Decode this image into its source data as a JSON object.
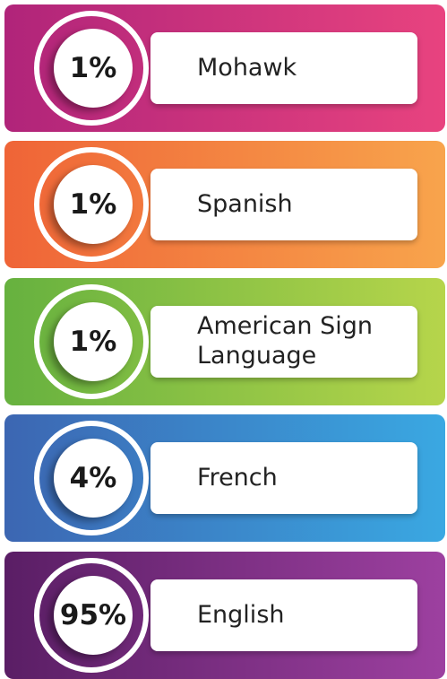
{
  "items": [
    {
      "value": "1%",
      "label": "Mohawk"
    },
    {
      "value": "1%",
      "label": "Spanish"
    },
    {
      "value": "1%",
      "label": "American Sign Language"
    },
    {
      "value": "4%",
      "label": "French"
    },
    {
      "value": "95%",
      "label": "English"
    }
  ]
}
